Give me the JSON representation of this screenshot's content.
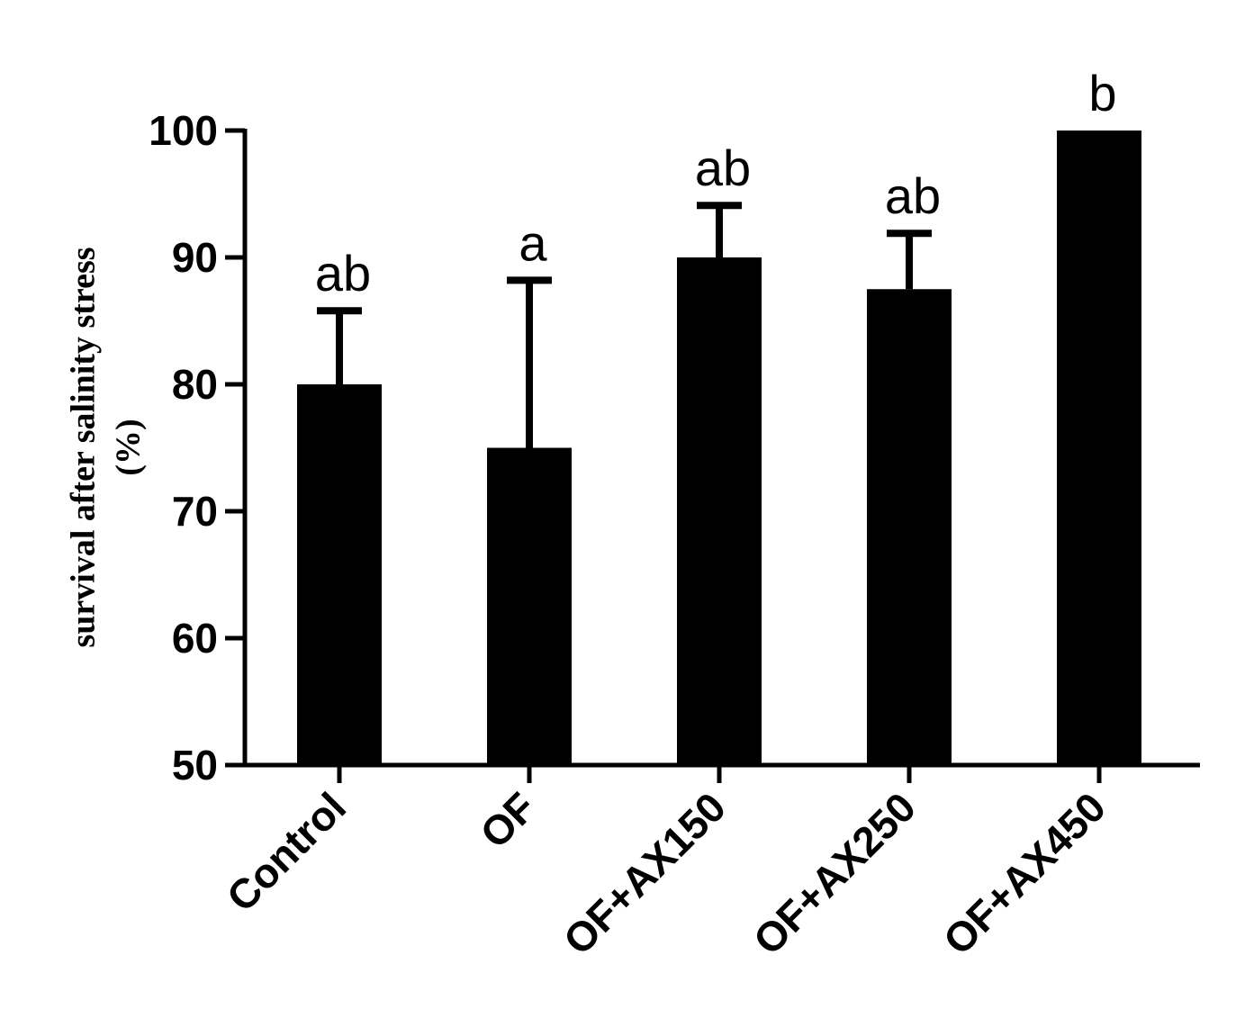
{
  "chart_data": {
    "type": "bar",
    "title": "",
    "xlabel": "",
    "ylabel_lines": [
      "survival after salinity stress",
      "(%)"
    ],
    "ylim": [
      50,
      100
    ],
    "yticks": [
      50,
      60,
      70,
      80,
      90,
      100
    ],
    "grid": false,
    "legend": "none",
    "bar_color": "#000000",
    "categories": [
      "Control",
      "OF",
      "OF+AX150",
      "OF+AX250",
      "OF+AX450"
    ],
    "values": [
      80,
      75,
      90,
      87.5,
      100
    ],
    "error_upper": [
      5.8,
      13.2,
      4.1,
      4.4,
      0
    ],
    "significance": [
      "ab",
      "a",
      "ab",
      "ab",
      "b"
    ]
  }
}
